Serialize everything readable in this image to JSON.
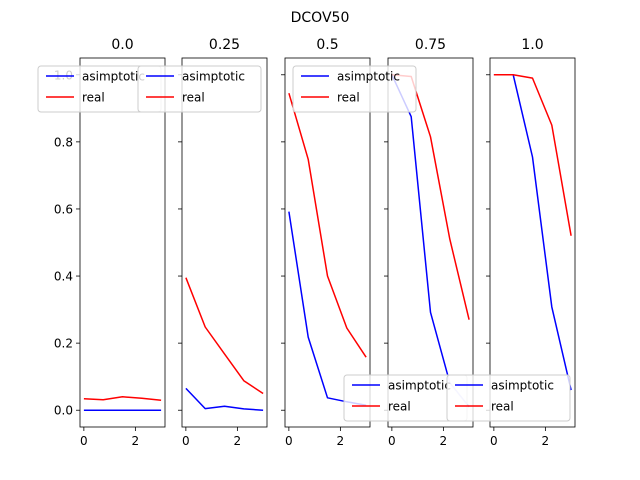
{
  "chart_data": {
    "type": "line",
    "suptitle": "DCOV50",
    "ylim": [
      -0.05,
      1.05
    ],
    "xlim": [
      -0.15,
      3.15
    ],
    "xticks": [
      0,
      2
    ],
    "yticks": [
      0.0,
      0.2,
      0.4,
      0.6,
      0.8,
      1.0
    ],
    "ytick_labels": [
      "0.0",
      "0.2",
      "0.4",
      "0.6",
      "0.8",
      "1.0"
    ],
    "legend_placement": [
      "top-left",
      "top-left",
      "top-right",
      "bottom-right",
      "bottom-right"
    ],
    "colors": {
      "asimptotic": "#0000ff",
      "real": "#ff0000"
    },
    "x": [
      0,
      0.75,
      1.5,
      2.25,
      3.0
    ],
    "panels": [
      {
        "title": "0.0",
        "series": [
          {
            "name": "asimptotic",
            "values": [
              0.0,
              0.0,
              0.0,
              0.0,
              0.0
            ]
          },
          {
            "name": "real",
            "values": [
              0.034,
              0.031,
              0.04,
              0.036,
              0.03
            ]
          }
        ]
      },
      {
        "title": "0.25",
        "series": [
          {
            "name": "asimptotic",
            "values": [
              0.065,
              0.005,
              0.012,
              0.004,
              0.0
            ]
          },
          {
            "name": "real",
            "values": [
              0.395,
              0.248,
              0.168,
              0.088,
              0.05
            ]
          }
        ]
      },
      {
        "title": "0.5",
        "series": [
          {
            "name": "asimptotic",
            "values": [
              0.592,
              0.218,
              0.037,
              0.025,
              0.015
            ]
          },
          {
            "name": "real",
            "values": [
              0.945,
              0.748,
              0.4,
              0.245,
              0.158
            ]
          }
        ]
      },
      {
        "title": "0.75",
        "series": [
          {
            "name": "asimptotic",
            "values": [
              1.0,
              0.875,
              0.292,
              0.082,
              0.01
            ]
          },
          {
            "name": "real",
            "values": [
              1.0,
              0.995,
              0.815,
              0.51,
              0.27
            ]
          }
        ]
      },
      {
        "title": "1.0",
        "series": [
          {
            "name": "asimptotic",
            "values": [
              1.0,
              1.0,
              0.755,
              0.308,
              0.06
            ]
          },
          {
            "name": "real",
            "values": [
              1.0,
              1.0,
              0.99,
              0.85,
              0.52
            ]
          }
        ]
      }
    ]
  }
}
